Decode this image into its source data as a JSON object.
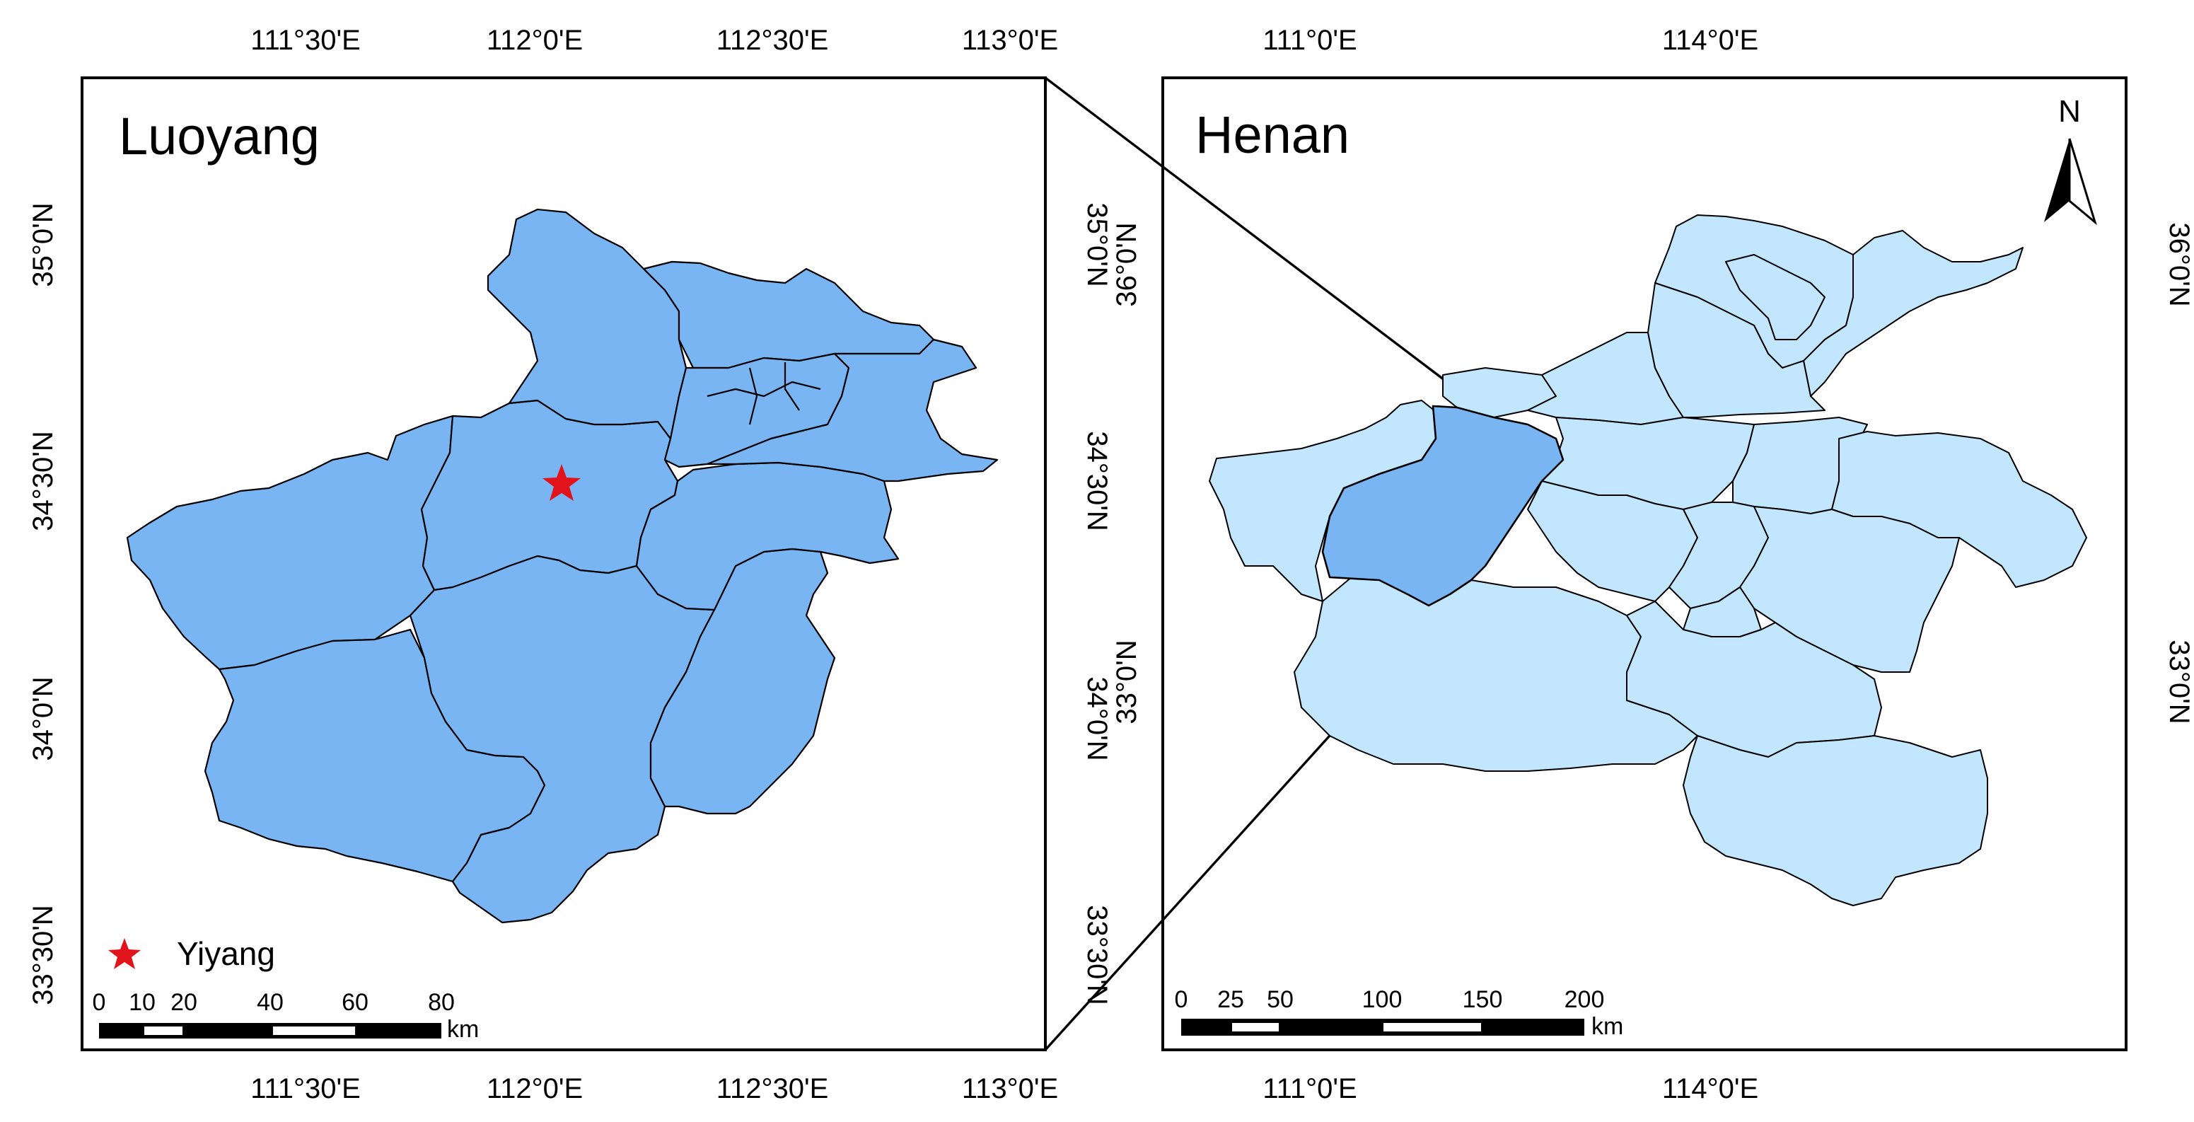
{
  "luoyang_map": {
    "title": "Luoyang",
    "x_ticks": [
      "111°30'E",
      "112°0'E",
      "112°30'E",
      "113°0'E"
    ],
    "y_ticks": [
      "35°0'N",
      "34°30'N",
      "34°0'N",
      "33°30'N"
    ],
    "legend": {
      "marker": "star",
      "label": "Yiyang",
      "color": "#e0141a"
    },
    "scale_bar": {
      "labels": [
        "0",
        "10",
        "20",
        "40",
        "60",
        "80"
      ],
      "unit": "km"
    },
    "fill_color": "#79b4f3"
  },
  "henan_map": {
    "title": "Henan",
    "x_ticks": [
      "111°0'E",
      "114°0'E"
    ],
    "y_ticks": [
      "36°0'N",
      "33°0'N"
    ],
    "north_arrow": {
      "label": "N"
    },
    "scale_bar": {
      "labels": [
        "0",
        "25",
        "50",
        "100",
        "150",
        "200"
      ],
      "unit": "km"
    },
    "fill_color": "#c2e6fd",
    "highlight_color": "#79b4f3"
  }
}
